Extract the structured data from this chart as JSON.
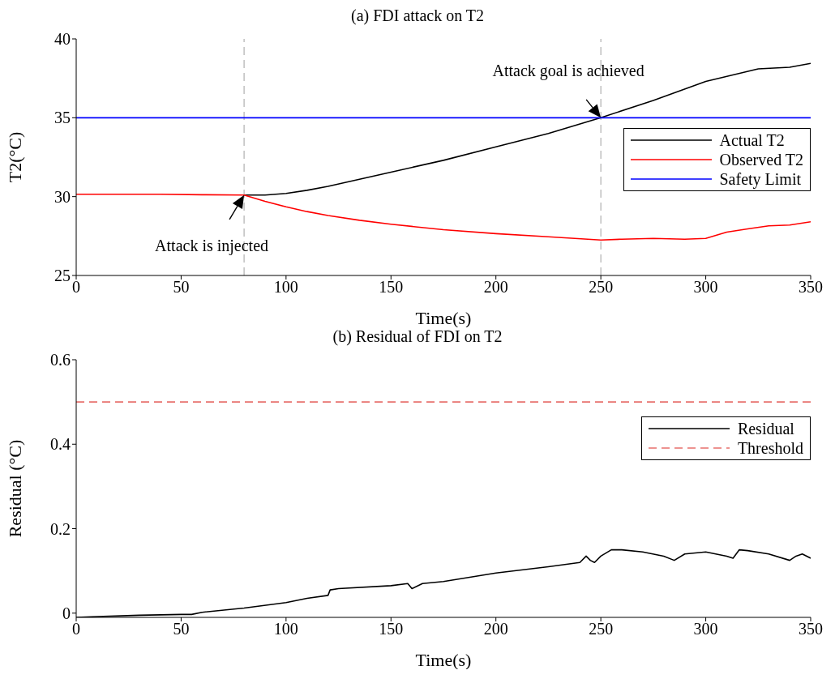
{
  "chart_data": [
    {
      "type": "line",
      "title": "(a) FDI attack on T2",
      "xlabel": "Time(s)",
      "ylabel": "T2(°C)",
      "xlim": [
        0,
        350
      ],
      "xticks": [
        0,
        50,
        100,
        150,
        200,
        250,
        300,
        350
      ],
      "ylim": [
        25,
        40
      ],
      "yticks": [
        25,
        30,
        35,
        40
      ],
      "legend": "right",
      "line_style": "solid",
      "marker": "none",
      "series": [
        {
          "name": "Actual T2",
          "color": "#000000",
          "x": [
            80,
            90,
            100,
            110,
            120,
            135,
            150,
            175,
            200,
            225,
            250,
            275,
            300,
            325,
            340,
            350
          ],
          "values": [
            30.1,
            30.1,
            30.2,
            30.4,
            30.65,
            31.1,
            31.55,
            32.3,
            33.15,
            34.0,
            35.0,
            36.1,
            37.3,
            38.1,
            38.2,
            38.45
          ]
        },
        {
          "name": "Observed T2",
          "color": "#ff0000",
          "x": [
            0,
            20,
            40,
            60,
            80,
            90,
            100,
            110,
            120,
            135,
            150,
            175,
            200,
            225,
            250,
            260,
            275,
            290,
            300,
            310,
            320,
            330,
            340,
            350
          ],
          "values": [
            30.15,
            30.15,
            30.15,
            30.12,
            30.1,
            29.7,
            29.35,
            29.05,
            28.8,
            28.5,
            28.25,
            27.9,
            27.65,
            27.45,
            27.25,
            27.3,
            27.35,
            27.3,
            27.35,
            27.75,
            27.95,
            28.15,
            28.2,
            28.4
          ]
        },
        {
          "name": "Safety Limit",
          "color": "#0000ff",
          "x": [
            0,
            350
          ],
          "values": [
            35,
            35
          ]
        }
      ],
      "ref_lines": [
        {
          "axis": "x",
          "value": 80,
          "color": "#a0a0a0",
          "line_style": "dashed"
        },
        {
          "axis": "x",
          "value": 250,
          "color": "#a0a0a0",
          "line_style": "dashed"
        }
      ],
      "annotations": [
        {
          "text": "Attack is injected",
          "x": 80,
          "y": 30.1
        },
        {
          "text": "Attack goal is achieved",
          "x": 250,
          "y": 35
        }
      ]
    },
    {
      "type": "line",
      "title": "(b) Residual of FDI on T2",
      "xlabel": "Time(s)",
      "ylabel": "Residual (°C)",
      "xlim": [
        0,
        350
      ],
      "xticks": [
        0,
        50,
        100,
        150,
        200,
        250,
        300,
        350
      ],
      "ylim": [
        -0.01,
        0.6
      ],
      "yticks": [
        0,
        0.2,
        0.4,
        0.6
      ],
      "legend": "top right",
      "marker": "none",
      "series": [
        {
          "name": "Residual",
          "color": "#000000",
          "line_style": "solid",
          "x": [
            0,
            10,
            30,
            50,
            55,
            60,
            80,
            100,
            110,
            120,
            121,
            125,
            150,
            158,
            160,
            165,
            175,
            200,
            225,
            240,
            243,
            245,
            247,
            250,
            255,
            260,
            270,
            280,
            285,
            290,
            300,
            310,
            313,
            316,
            320,
            330,
            340,
            343,
            346,
            350
          ],
          "values": [
            -0.01,
            -0.008,
            -0.005,
            -0.003,
            -0.003,
            0.002,
            0.012,
            0.025,
            0.035,
            0.042,
            0.055,
            0.058,
            0.065,
            0.07,
            0.058,
            0.07,
            0.075,
            0.095,
            0.11,
            0.12,
            0.135,
            0.125,
            0.12,
            0.135,
            0.15,
            0.15,
            0.145,
            0.135,
            0.125,
            0.14,
            0.145,
            0.135,
            0.13,
            0.15,
            0.148,
            0.14,
            0.125,
            0.135,
            0.14,
            0.13
          ]
        },
        {
          "name": "Threshold",
          "color": "#e8706c",
          "line_style": "dashed",
          "x": [
            0,
            350
          ],
          "values": [
            0.5,
            0.5
          ]
        }
      ]
    }
  ]
}
